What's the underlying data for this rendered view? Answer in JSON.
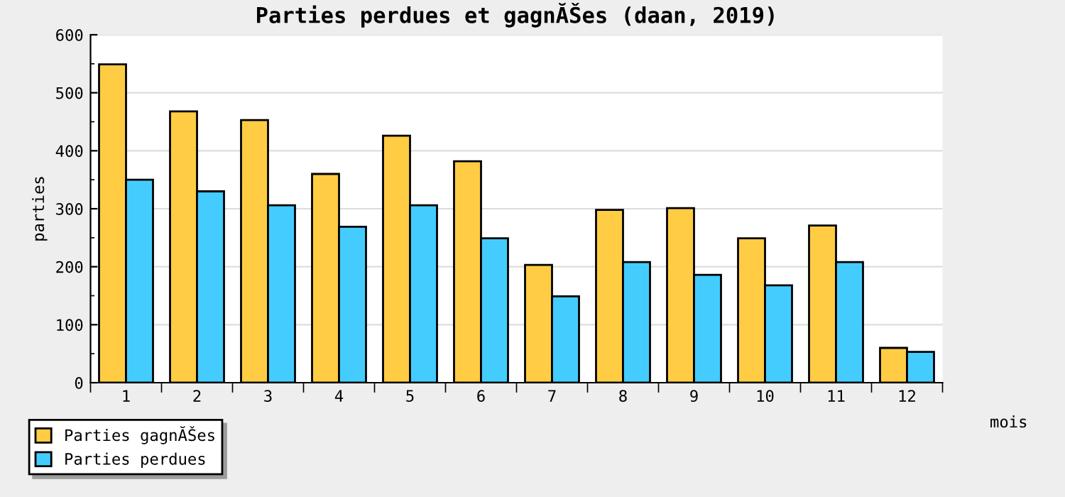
{
  "chart_data": {
    "type": "bar",
    "title": "Parties perdues et gagnĂŠes (daan, 2019)",
    "xlabel": "mois",
    "ylabel": "parties",
    "categories": [
      "1",
      "2",
      "3",
      "4",
      "5",
      "6",
      "7",
      "8",
      "9",
      "10",
      "11",
      "12"
    ],
    "series": [
      {
        "name": "Parties gagnĂŠes",
        "color": "#ffcc44",
        "values": [
          549,
          468,
          453,
          360,
          426,
          382,
          203,
          298,
          301,
          249,
          271,
          60
        ]
      },
      {
        "name": "Parties perdues",
        "color": "#44ccff",
        "values": [
          350,
          330,
          306,
          269,
          306,
          249,
          149,
          208,
          186,
          168,
          208,
          53
        ]
      }
    ],
    "ylim": [
      0,
      600
    ],
    "yticks": [
      0,
      100,
      200,
      300,
      400,
      500,
      600
    ],
    "grid": "y",
    "legend": "bottom left"
  }
}
